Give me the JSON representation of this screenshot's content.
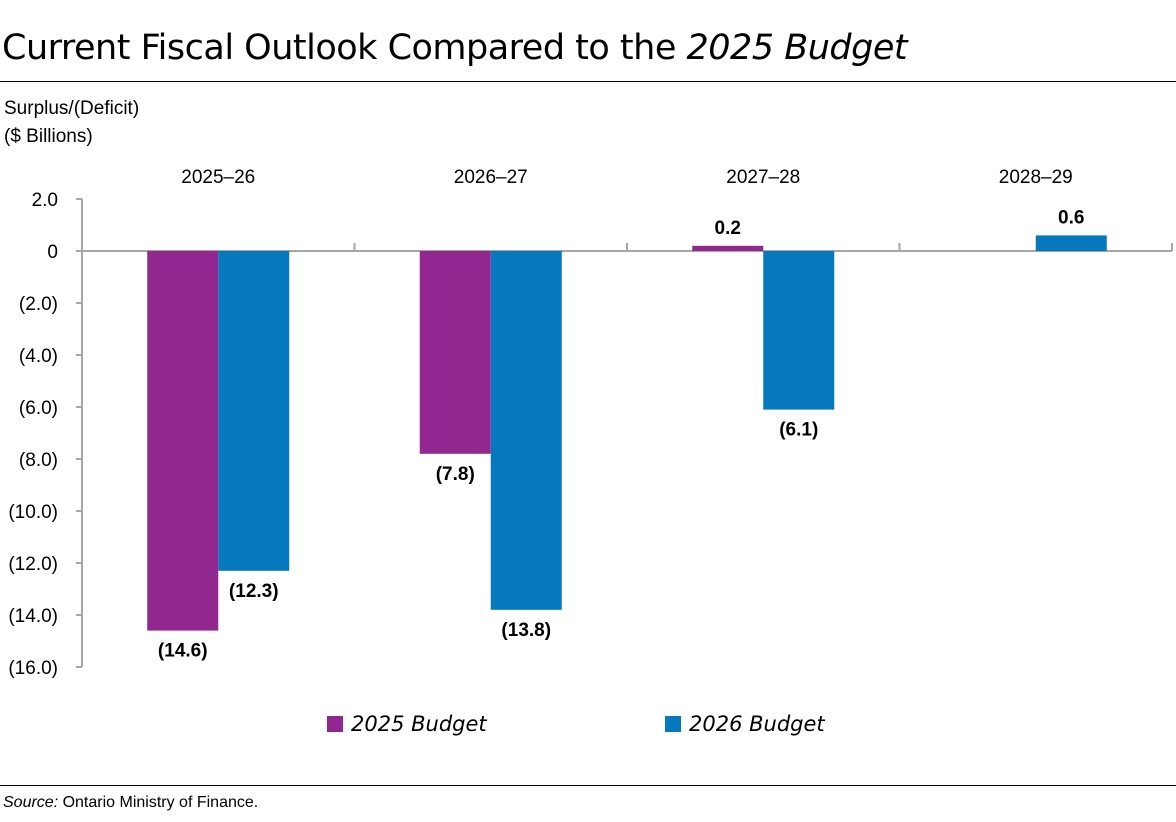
{
  "title": {
    "main": "Current Fiscal Outlook Compared to the ",
    "italic": "2025 Budget"
  },
  "source": {
    "label": "Source:",
    "text": " Ontario Ministry of Finance."
  },
  "chart_data": {
    "type": "bar",
    "ylabel_lines": [
      "Surplus/(Deficit)",
      "($ Billions)"
    ],
    "categories": [
      "2025–26",
      "2026–27",
      "2027–28",
      "2028–29"
    ],
    "series": [
      {
        "name": "2025 Budget",
        "color": "#92278F",
        "values": [
          -14.6,
          -7.8,
          0.2,
          null
        ],
        "labels": [
          "(14.6)",
          "(7.8)",
          "0.2",
          null
        ]
      },
      {
        "name": "2026 Budget",
        "color": "#0678BE",
        "values": [
          -12.3,
          -13.8,
          -6.1,
          0.6
        ],
        "labels": [
          "(12.3)",
          "(13.8)",
          "(6.1)",
          "0.6"
        ]
      }
    ],
    "ylim": [
      -16,
      2
    ],
    "yticks": [
      2,
      0,
      -2,
      -4,
      -6,
      -8,
      -10,
      -12,
      -14,
      -16
    ],
    "ytick_labels": [
      "2.0",
      "0",
      "(2.0)",
      "(4.0)",
      "(6.0)",
      "(8.0)",
      "(10.0)",
      "(12.0)",
      "(14.0)",
      "(16.0)"
    ],
    "category_labels_position": "top",
    "grid": false,
    "legend": "bottom"
  }
}
